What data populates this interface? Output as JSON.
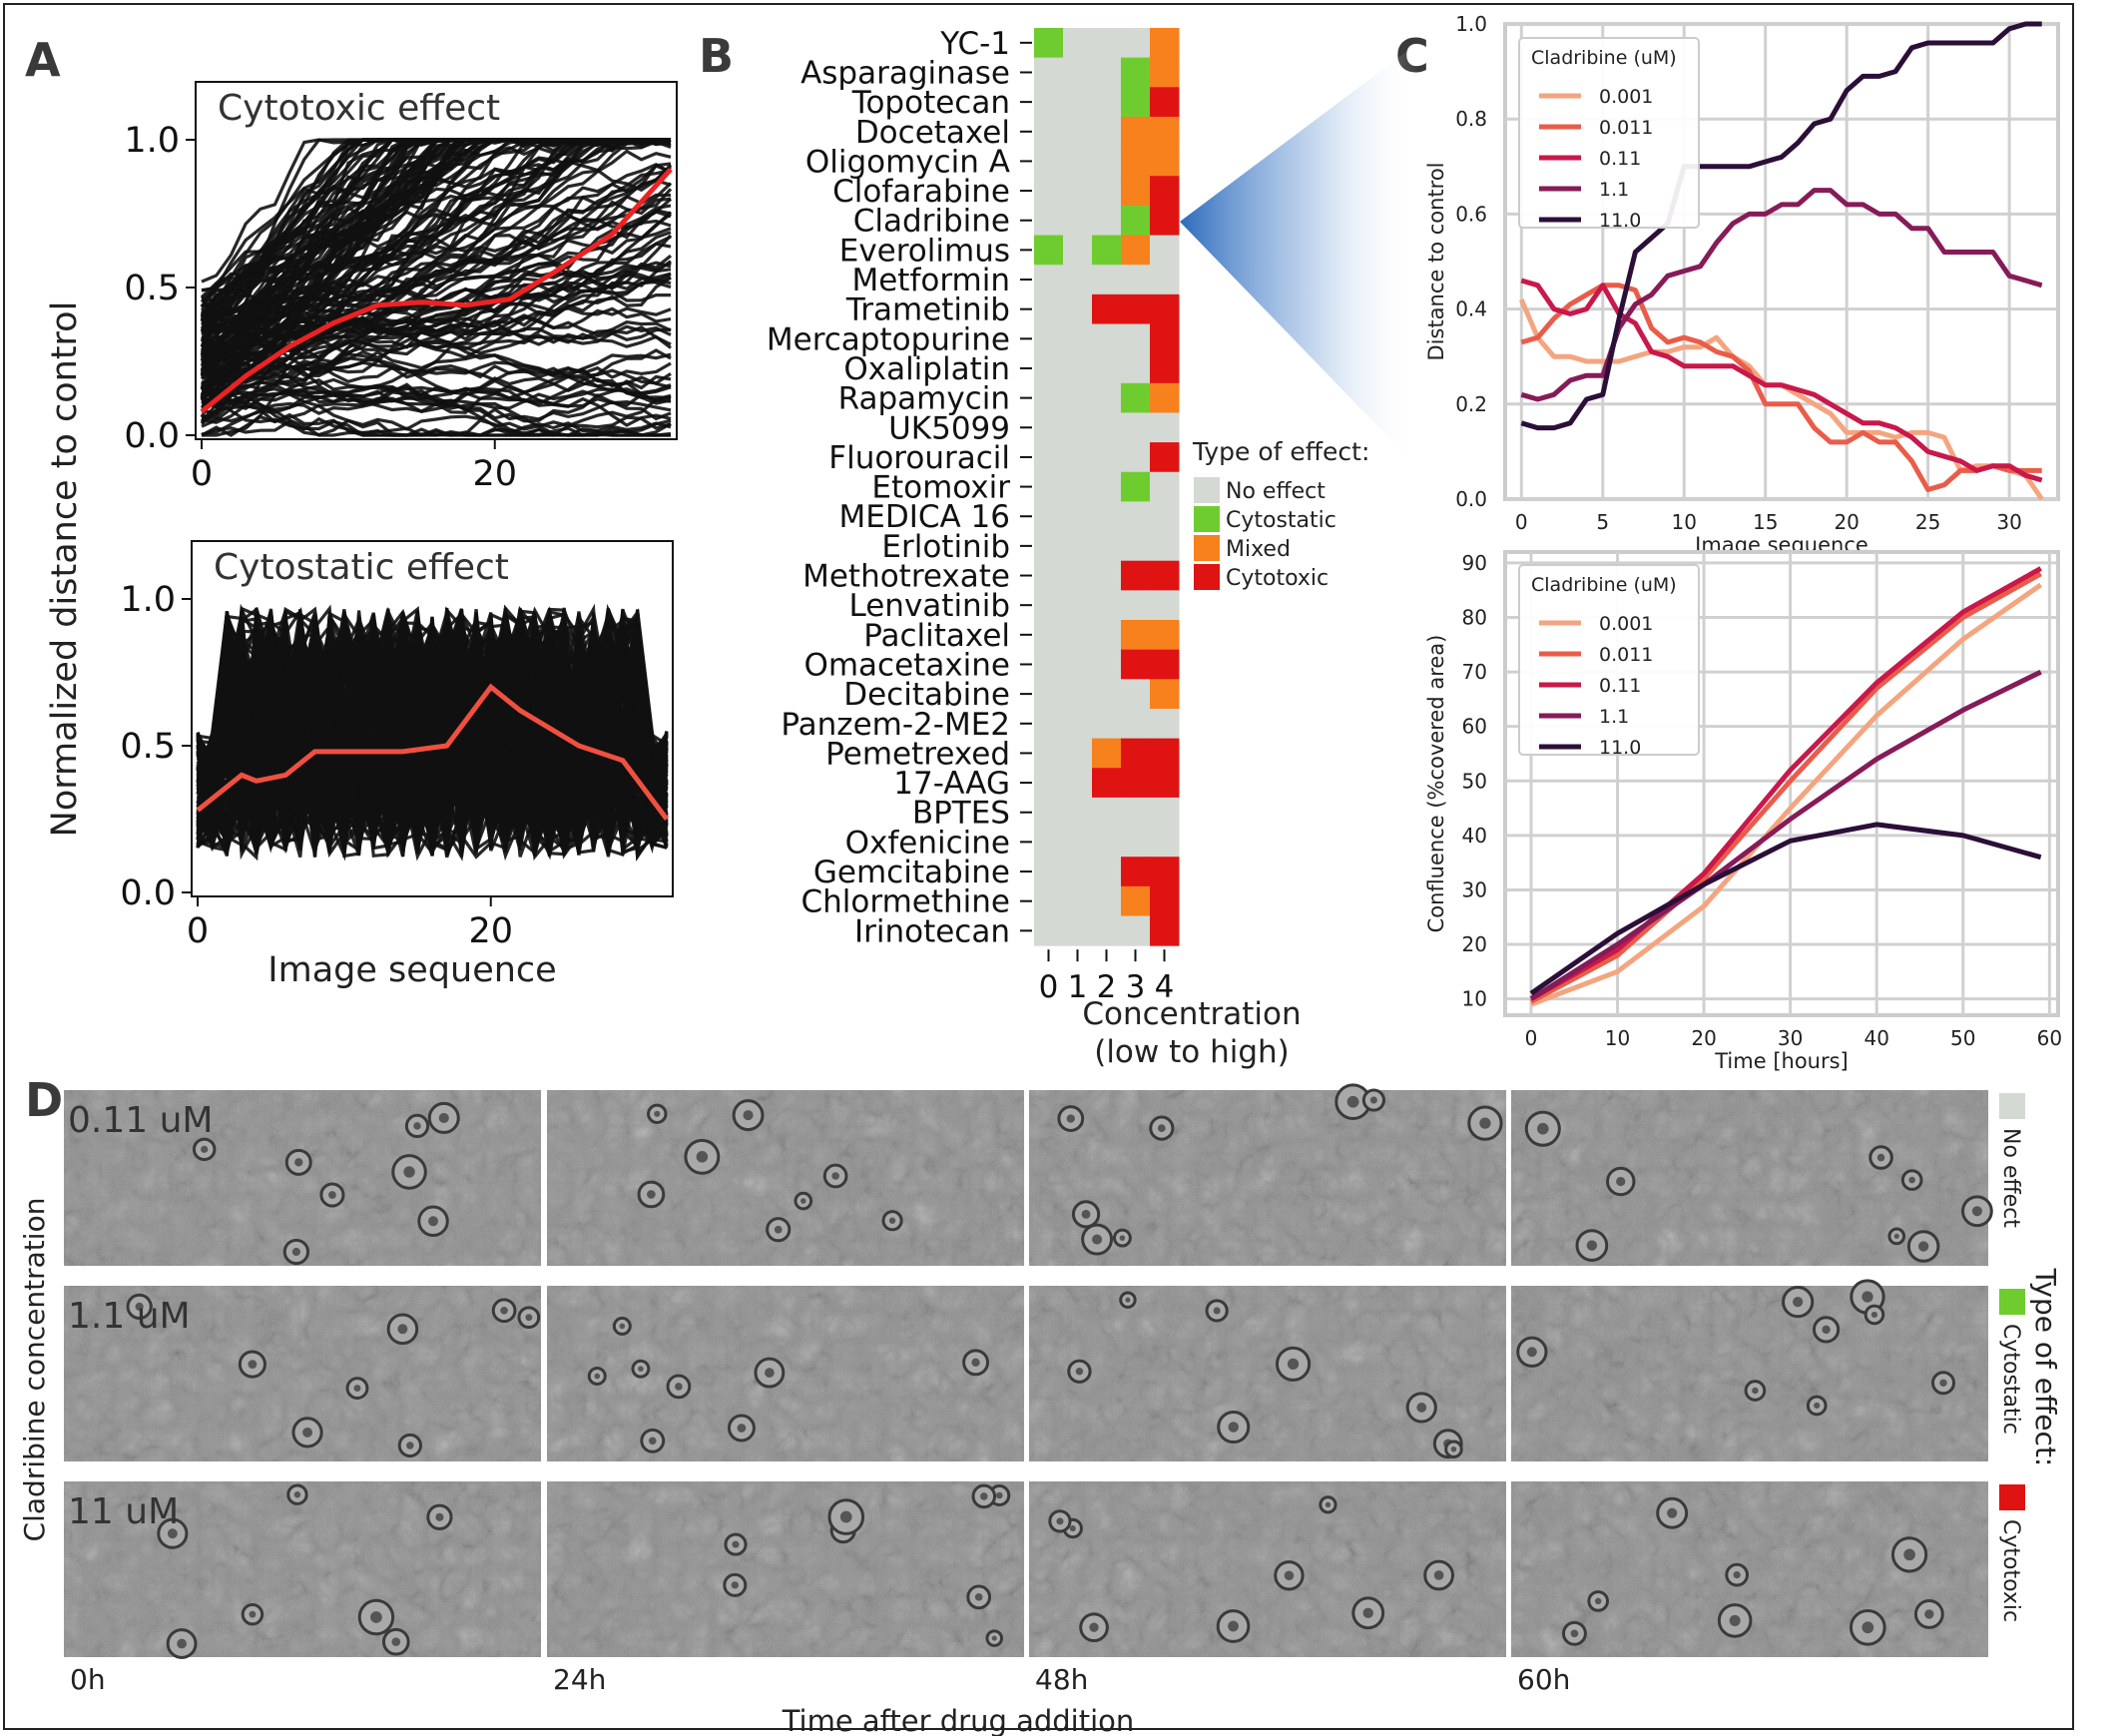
{
  "panel_labels": {
    "a": "A",
    "b": "B",
    "c": "C",
    "d": "D"
  },
  "chart_data": [
    {
      "panel": "A",
      "type": "line",
      "title": "Cytotoxic effect",
      "ylabel": "Normalized distance to control",
      "xlim": [
        0,
        32
      ],
      "ylim": [
        0,
        1.0
      ],
      "xticks": [
        0,
        20
      ],
      "yticks": [
        "0.0",
        "0.5",
        "1.0"
      ],
      "series": [
        {
          "values": [
            0.08,
            0.2,
            0.3,
            0.38,
            0.44,
            0.45,
            0.44,
            0.46,
            0.55,
            0.68,
            0.9
          ],
          "x": [
            0,
            3,
            6,
            9,
            12,
            15,
            18,
            21,
            24,
            28,
            32
          ]
        }
      ]
    },
    {
      "panel": "A",
      "type": "line",
      "title": "Cytostatic effect",
      "xlabel": "Image sequence",
      "xlim": [
        0,
        32
      ],
      "ylim": [
        0,
        1.0
      ],
      "xticks": [
        0,
        20
      ],
      "yticks": [
        "0.0",
        "0.5",
        "1.0"
      ],
      "series": [
        {
          "values": [
            0.28,
            0.4,
            0.38,
            0.4,
            0.48,
            0.48,
            0.48,
            0.5,
            0.7,
            0.62,
            0.5,
            0.45,
            0.25
          ],
          "x": [
            0,
            3,
            4,
            6,
            8,
            11,
            14,
            17,
            20,
            22,
            26,
            29,
            32
          ]
        }
      ]
    },
    {
      "panel": "B",
      "type": "heatmap",
      "xlabel": "Concentration",
      "xlabel2": "(low to high)",
      "x": [
        "0",
        "1",
        "2",
        "3",
        "4"
      ],
      "categories": [
        "YC-1",
        "Asparaginase",
        "Topotecan",
        "Docetaxel",
        "Oligomycin A",
        "Clofarabine",
        "Cladribine",
        "Everolimus",
        "Metformin",
        "Trametinib",
        "Mercaptopurine",
        "Oxaliplatin",
        "Rapamycin",
        "UK5099",
        "Fluorouracil",
        "Etomoxir",
        "MEDICA 16",
        "Erlotinib",
        "Methotrexate",
        "Lenvatinib",
        "Paclitaxel",
        "Omacetaxine",
        "Decitabine",
        "Panzem-2-ME2",
        "Pemetrexed",
        "17-AAG",
        "BPTES",
        "Oxfenicine",
        "Gemcitabine",
        "Chlormethine",
        "Irinotecan"
      ],
      "values": [
        [
          1,
          0,
          0,
          0,
          2
        ],
        [
          0,
          0,
          0,
          1,
          2
        ],
        [
          0,
          0,
          0,
          1,
          3
        ],
        [
          0,
          0,
          0,
          2,
          2
        ],
        [
          0,
          0,
          0,
          2,
          2
        ],
        [
          0,
          0,
          0,
          2,
          3
        ],
        [
          0,
          0,
          0,
          1,
          3
        ],
        [
          1,
          0,
          1,
          2,
          0
        ],
        [
          0,
          0,
          0,
          0,
          0
        ],
        [
          0,
          0,
          3,
          3,
          3
        ],
        [
          0,
          0,
          0,
          0,
          3
        ],
        [
          0,
          0,
          0,
          0,
          3
        ],
        [
          0,
          0,
          0,
          1,
          2
        ],
        [
          0,
          0,
          0,
          0,
          0
        ],
        [
          0,
          0,
          0,
          0,
          3
        ],
        [
          0,
          0,
          0,
          1,
          0
        ],
        [
          0,
          0,
          0,
          0,
          0
        ],
        [
          0,
          0,
          0,
          0,
          0
        ],
        [
          0,
          0,
          0,
          3,
          3
        ],
        [
          0,
          0,
          0,
          0,
          0
        ],
        [
          0,
          0,
          0,
          2,
          2
        ],
        [
          0,
          0,
          0,
          3,
          3
        ],
        [
          0,
          0,
          0,
          0,
          2
        ],
        [
          0,
          0,
          0,
          0,
          0
        ],
        [
          0,
          0,
          2,
          3,
          3
        ],
        [
          0,
          0,
          3,
          3,
          3
        ],
        [
          0,
          0,
          0,
          0,
          0
        ],
        [
          0,
          0,
          0,
          0,
          0
        ],
        [
          0,
          0,
          0,
          3,
          3
        ],
        [
          0,
          0,
          0,
          2,
          3
        ],
        [
          0,
          0,
          0,
          0,
          3
        ]
      ],
      "legend_title": "Type of effect:",
      "legend": [
        "No effect",
        "Cytostatic",
        "Mixed",
        "Cytotoxic"
      ],
      "colors": [
        "#d4d9d3",
        "#6fcc2f",
        "#f7811c",
        "#e01313"
      ]
    },
    {
      "panel": "C",
      "type": "line",
      "xlabel": "Image sequence",
      "ylabel": "Distance to control",
      "xlim": [
        -1,
        33
      ],
      "ylim": [
        0,
        1.0
      ],
      "xticks": [
        0,
        5,
        10,
        15,
        20,
        25,
        30
      ],
      "yticks": [
        "0.0",
        "0.2",
        "0.4",
        "0.6",
        "0.8",
        "1.0"
      ],
      "legend_title": "Cladribine (uM)",
      "legend_position": "top-left",
      "grid": true,
      "x": [
        0,
        1,
        2,
        3,
        4,
        5,
        6,
        7,
        8,
        9,
        10,
        11,
        12,
        13,
        14,
        15,
        16,
        17,
        18,
        19,
        20,
        21,
        22,
        23,
        24,
        25,
        26,
        27,
        28,
        29,
        30,
        31,
        32
      ],
      "series": [
        {
          "name": "0.001",
          "color": "#f4a57f",
          "values": [
            0.42,
            0.34,
            0.3,
            0.3,
            0.29,
            0.29,
            0.29,
            0.3,
            0.31,
            0.31,
            0.32,
            0.32,
            0.34,
            0.3,
            0.28,
            0.24,
            0.24,
            0.22,
            0.2,
            0.18,
            0.14,
            0.14,
            0.14,
            0.13,
            0.14,
            0.14,
            0.13,
            0.06,
            0.07,
            0.07,
            0.06,
            0.05,
            0.0
          ]
        },
        {
          "name": "0.011",
          "color": "#ea5c49",
          "values": [
            0.33,
            0.34,
            0.38,
            0.41,
            0.43,
            0.45,
            0.45,
            0.44,
            0.36,
            0.33,
            0.34,
            0.33,
            0.31,
            0.3,
            0.27,
            0.2,
            0.2,
            0.2,
            0.15,
            0.12,
            0.12,
            0.14,
            0.12,
            0.12,
            0.08,
            0.02,
            0.03,
            0.06,
            0.06,
            0.07,
            0.06,
            0.06,
            0.06
          ]
        },
        {
          "name": "0.11",
          "color": "#c9184a",
          "values": [
            0.46,
            0.45,
            0.4,
            0.39,
            0.4,
            0.45,
            0.39,
            0.37,
            0.31,
            0.3,
            0.28,
            0.28,
            0.28,
            0.28,
            0.26,
            0.24,
            0.24,
            0.23,
            0.22,
            0.2,
            0.18,
            0.16,
            0.16,
            0.15,
            0.13,
            0.1,
            0.09,
            0.08,
            0.06,
            0.07,
            0.07,
            0.05,
            0.04
          ]
        },
        {
          "name": "1.1",
          "color": "#861b58",
          "values": [
            0.22,
            0.21,
            0.22,
            0.25,
            0.26,
            0.26,
            0.36,
            0.41,
            0.43,
            0.47,
            0.48,
            0.49,
            0.54,
            0.58,
            0.6,
            0.6,
            0.62,
            0.62,
            0.65,
            0.65,
            0.62,
            0.62,
            0.6,
            0.6,
            0.57,
            0.57,
            0.52,
            0.52,
            0.52,
            0.52,
            0.47,
            0.46,
            0.45
          ]
        },
        {
          "name": "11.0",
          "color": "#2b0f38",
          "values": [
            0.16,
            0.15,
            0.15,
            0.16,
            0.21,
            0.22,
            0.38,
            0.52,
            0.55,
            0.58,
            0.7,
            0.7,
            0.7,
            0.7,
            0.7,
            0.71,
            0.72,
            0.75,
            0.79,
            0.8,
            0.86,
            0.89,
            0.89,
            0.9,
            0.95,
            0.96,
            0.96,
            0.96,
            0.96,
            0.96,
            0.99,
            1.0,
            1.0
          ]
        }
      ]
    },
    {
      "panel": "C",
      "type": "line",
      "xlabel": "Time [hours]",
      "ylabel": "Confluence (%covered area)",
      "xlim": [
        -3,
        61
      ],
      "ylim": [
        7,
        92
      ],
      "xticks": [
        0,
        10,
        20,
        30,
        40,
        50,
        60
      ],
      "yticks": [
        "10",
        "20",
        "30",
        "40",
        "50",
        "60",
        "70",
        "80",
        "90"
      ],
      "legend_title": "Cladribine (uM)",
      "legend_position": "top-left",
      "grid": true,
      "x": [
        0,
        10,
        20,
        30,
        40,
        50,
        59
      ],
      "series": [
        {
          "name": "0.001",
          "color": "#f4a57f",
          "values": [
            9,
            15,
            27,
            45,
            62,
            76,
            86
          ]
        },
        {
          "name": "0.011",
          "color": "#ea5c49",
          "values": [
            9.5,
            18,
            32,
            50,
            67,
            80,
            88
          ]
        },
        {
          "name": "0.11",
          "color": "#c9184a",
          "values": [
            10,
            19,
            33,
            52,
            68,
            81,
            89
          ]
        },
        {
          "name": "1.1",
          "color": "#861b58",
          "values": [
            10,
            20,
            31,
            43,
            54,
            63,
            70
          ]
        },
        {
          "name": "11.0",
          "color": "#2b0f38",
          "values": [
            11,
            22,
            31,
            39,
            42,
            40,
            36
          ]
        }
      ]
    }
  ],
  "panel_d": {
    "ylabel": "Cladribine concentration",
    "xlabel": "Time after drug addition",
    "time_labels": [
      "0h",
      "24h",
      "48h",
      "60h"
    ],
    "rows": [
      {
        "concentration": "0.11 uM",
        "effect": "No effect",
        "color": "#d4d9d3"
      },
      {
        "concentration": "1.1 uM",
        "effect": "Cytostatic",
        "color": "#6fcc2f"
      },
      {
        "concentration": "11 uM",
        "effect": "Cytotoxic",
        "color": "#e01313"
      }
    ],
    "legend_title": "Type of effect:"
  }
}
